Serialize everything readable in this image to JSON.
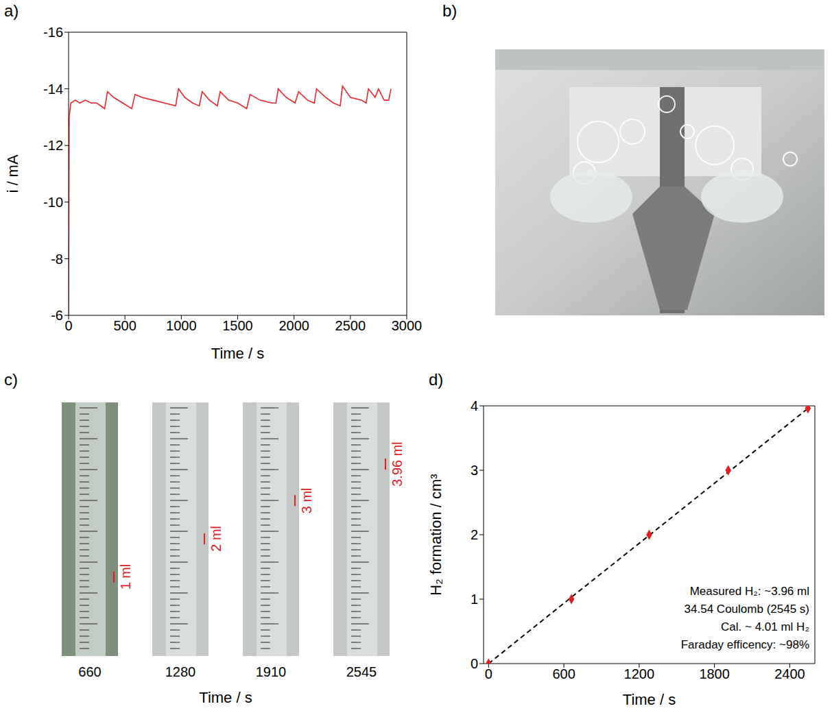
{
  "chart_data": [
    {
      "panel": "a)",
      "type": "line",
      "xlabel": "Time / s",
      "ylabel": "i / mA",
      "color": "#e8262a",
      "x": [
        0,
        5,
        20,
        60,
        100,
        150,
        200,
        250,
        320,
        345,
        400,
        480,
        560,
        590,
        650,
        750,
        850,
        950,
        975,
        1030,
        1100,
        1160,
        1185,
        1250,
        1320,
        1345,
        1420,
        1500,
        1580,
        1610,
        1700,
        1800,
        1840,
        1860,
        1930,
        2010,
        2040,
        2120,
        2180,
        2200,
        2280,
        2350,
        2410,
        2430,
        2500,
        2600,
        2640,
        2660,
        2720,
        2750,
        2800,
        2840,
        2860
      ],
      "values": [
        -6,
        -13.0,
        -13.5,
        -13.6,
        -13.5,
        -13.6,
        -13.5,
        -13.5,
        -13.3,
        -13.9,
        -13.7,
        -13.5,
        -13.3,
        -13.8,
        -13.7,
        -13.6,
        -13.5,
        -13.4,
        -14.0,
        -13.7,
        -13.5,
        -13.4,
        -13.9,
        -13.6,
        -13.4,
        -13.9,
        -13.6,
        -13.5,
        -13.3,
        -13.8,
        -13.6,
        -13.5,
        -13.5,
        -14.0,
        -13.7,
        -13.5,
        -13.9,
        -13.6,
        -13.5,
        -14.0,
        -13.7,
        -13.5,
        -13.4,
        -14.1,
        -13.7,
        -13.6,
        -13.5,
        -14.0,
        -13.7,
        -14.0,
        -13.6,
        -13.6,
        -14.0
      ],
      "xlim": [
        0,
        3000
      ],
      "xticks": [
        0,
        500,
        1000,
        1500,
        2000,
        2500,
        3000
      ],
      "ylim": [
        -6,
        -16
      ],
      "yticks": [
        -6,
        -8,
        -10,
        -12,
        -14,
        -16
      ],
      "grid": false
    },
    {
      "panel": "b)",
      "type": "image"
    },
    {
      "panel": "c)",
      "type": "image",
      "xlabel": "Time / s",
      "x": [
        660,
        1280,
        1910,
        2545
      ],
      "values": [
        1,
        2,
        3,
        3.96
      ],
      "value_labels": [
        "1 ml",
        "2 ml",
        "3 ml",
        "3.96 ml"
      ],
      "color": "#e02020"
    },
    {
      "panel": "d)",
      "type": "scatter",
      "xlabel": "Time / s",
      "ylabel": "H₂ formation / cm³",
      "x": [
        0,
        660,
        1280,
        1910,
        2545
      ],
      "series": [
        {
          "type": "line",
          "color": "#000000",
          "line_style": "dashed",
          "values": [
            0,
            1.03,
            1.99,
            2.97,
            3.96
          ]
        },
        {
          "type": "scatter",
          "color": "#e02020",
          "marker": "diamond",
          "values": [
            0,
            1,
            2,
            3,
            3.96
          ]
        }
      ],
      "xlim": [
        -40,
        2600
      ],
      "xticks": [
        0,
        600,
        1200,
        1800,
        2400
      ],
      "ylim": [
        0,
        4
      ],
      "yticks": [
        0,
        1,
        2,
        3,
        4
      ],
      "grid": false,
      "annotations": [
        "Measured H₂: ~3.96 ml",
        "34.54 Coulomb (2545 s)",
        "Cal. ~ 4.01 ml H₂",
        "Faraday efficency: ~98%"
      ]
    }
  ]
}
